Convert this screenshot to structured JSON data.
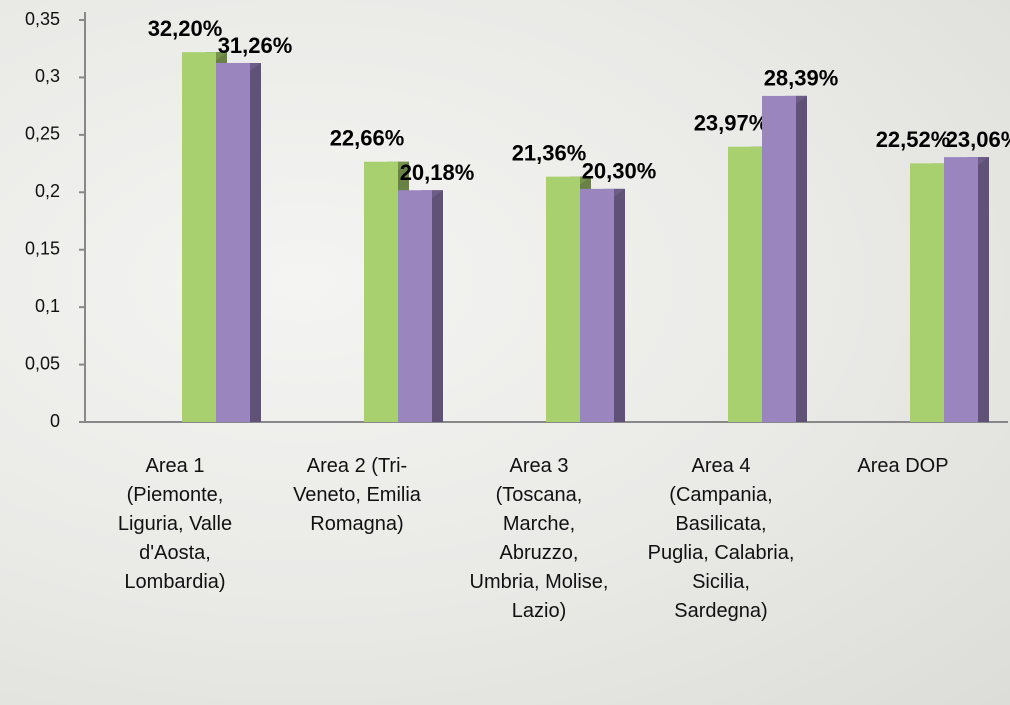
{
  "chart_data": {
    "type": "bar",
    "categories": [
      "Area 1 (Piemonte, Liguria, Valle d'Aosta, Lombardia)",
      "Area 2 (Tri-Veneto, Emilia Romagna)",
      "Area 3 (Toscana, Marche, Abruzzo, Umbria, Molise, Lazio)",
      "Area 4 (Campania, Basilicata, Puglia, Calabria, Sicilia, Sardegna)",
      "Area DOP"
    ],
    "series": [
      {
        "color": "#a9d06e",
        "values": [
          0.322,
          0.2266,
          0.2136,
          0.2397,
          0.2252
        ],
        "value_labels": [
          "32,20%",
          "22,66%",
          "21,36%",
          "23,97%",
          "22,52%"
        ]
      },
      {
        "color": "#9b85bf",
        "values": [
          0.3126,
          0.2018,
          0.203,
          0.2839,
          0.2306
        ],
        "value_labels": [
          "31,26%",
          "20,18%",
          "20,30%",
          "28,39%",
          "23,06%"
        ]
      }
    ],
    "ylim": [
      0,
      0.35
    ],
    "yticks": [
      0,
      {
        "value": 0.05,
        "label": "0,05"
      },
      {
        "value": 0.1,
        "label": "0,1"
      },
      {
        "value": 0.15,
        "label": "0,15"
      },
      {
        "value": 0.2,
        "label": "0,2"
      },
      {
        "value": 0.25,
        "label": "0,25"
      },
      {
        "value": 0.3,
        "label": "0,3"
      },
      {
        "value": 0.35,
        "label": "0,35"
      }
    ]
  }
}
